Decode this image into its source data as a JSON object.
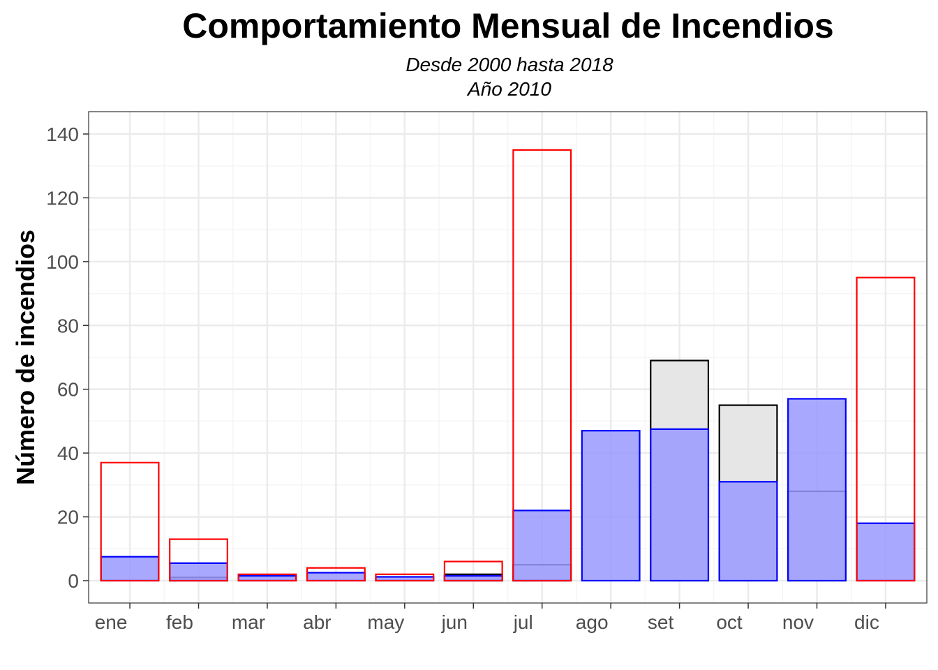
{
  "chart_data": {
    "type": "bar",
    "title": "Comportamiento Mensual de Incendios",
    "subtitle_lines": [
      "Desde 2000 hasta 2018",
      "Año 2010"
    ],
    "xlabel": "",
    "ylabel": "Número de incendios",
    "ylim": [
      -7,
      147
    ],
    "yticks": [
      0,
      20,
      40,
      60,
      80,
      100,
      120,
      140
    ],
    "grid": true,
    "categories": [
      "ene",
      "feb",
      "mar",
      "abr",
      "may",
      "jun",
      "jul",
      "ago",
      "set",
      "oct",
      "nov",
      "dic"
    ],
    "series": [
      {
        "style": "gray-fill-black-outline",
        "values": [
          null,
          1,
          null,
          null,
          null,
          2,
          5,
          null,
          69,
          55,
          28,
          null
        ]
      },
      {
        "style": "blue-fill-blue-outline",
        "values": [
          7.5,
          5.5,
          1.5,
          2.5,
          1.2,
          1.5,
          22,
          47,
          47.5,
          31,
          57,
          18
        ]
      },
      {
        "style": "red-outline",
        "values": [
          37,
          13,
          2,
          4,
          2,
          6,
          135,
          null,
          null,
          null,
          null,
          95
        ]
      }
    ],
    "colors": {
      "gray_fill": "#e6e6e6",
      "black_outline": "#000000",
      "blue_fill": "#9999ff",
      "blue_outline": "#0000ff",
      "red_outline": "#ff0000",
      "panel_border": "#333333",
      "grid_major": "#ebebeb",
      "grid_minor": "#f5f5f5",
      "tick_text": "#4d4d4d"
    }
  }
}
